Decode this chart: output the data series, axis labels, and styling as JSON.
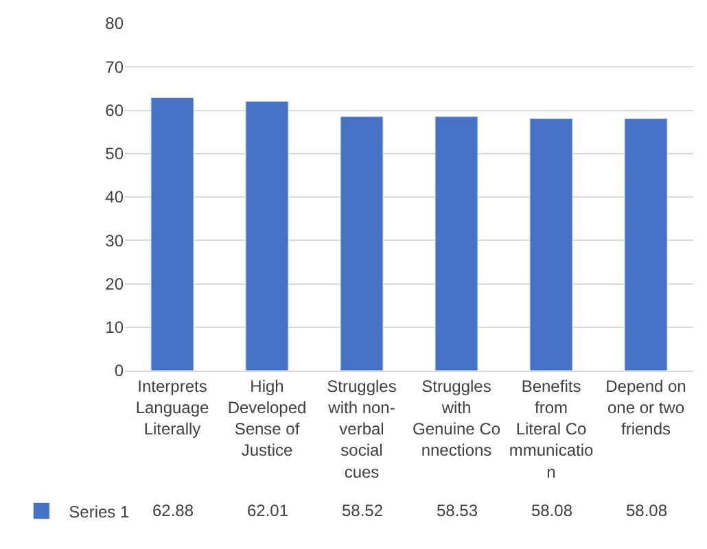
{
  "chart_data": {
    "type": "bar",
    "categories": [
      "Interprets Language Literally",
      "High Developed Sense of Justice",
      "Struggles with non-verbal social cues",
      "Struggles with Genuine Connections",
      "Benefits from Literal Communication",
      "Depend on one or two friends"
    ],
    "series": [
      {
        "name": "Series 1",
        "color": "#4472c4",
        "values": [
          62.88,
          62.01,
          58.52,
          58.53,
          58.08,
          58.08
        ]
      }
    ],
    "ylim": [
      0,
      80
    ],
    "yticks": [
      0,
      10,
      20,
      30,
      40,
      50,
      60,
      70,
      80
    ],
    "grid": "y",
    "data_labels": true,
    "legend": "bottom left"
  }
}
